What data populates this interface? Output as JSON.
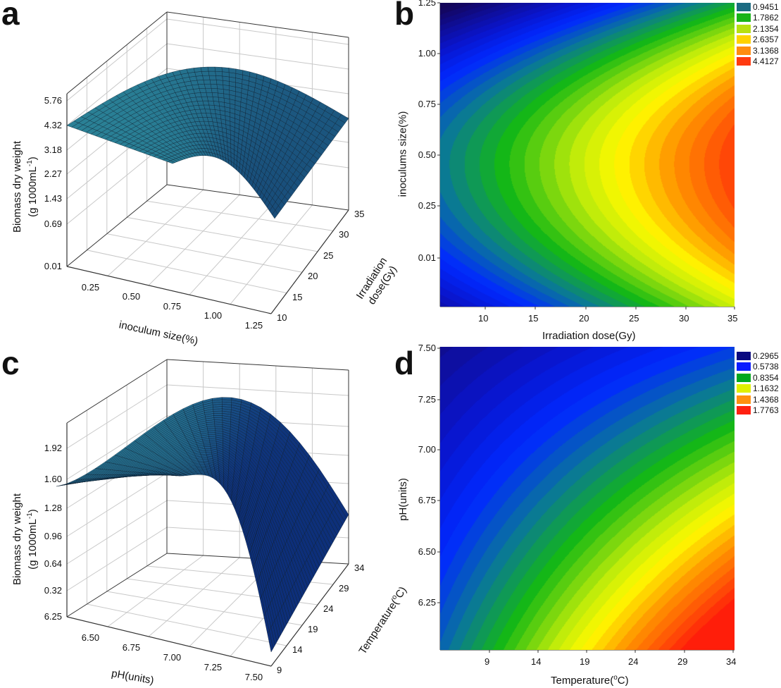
{
  "panels": {
    "a": "a",
    "b": "b",
    "c": "c",
    "d": "d"
  },
  "chart_data": [
    {
      "id": "a",
      "type": "surface",
      "zlabel_line1": "Biomass dry weight",
      "zlabel_line2": "(g 1000mL",
      "zlabel_sup": "-1",
      "zlabel_close": ")",
      "xlabel": "inoculum size(%)",
      "ylabel": "Irradiation dose(Gy)",
      "z_ticks": [
        "0.01",
        "0.69",
        "1.43",
        "2.27",
        "3.18",
        "4.32",
        "5.76"
      ],
      "x_ticks": [
        "0.25",
        "0.50",
        "0.75",
        "1.00",
        "1.25"
      ],
      "y_ticks": [
        "10",
        "15",
        "20",
        "25",
        "30",
        "35"
      ],
      "surface_colors": [
        "#174a78",
        "#2e8c9c"
      ],
      "grid": true
    },
    {
      "id": "b",
      "type": "contour",
      "xlabel": "Irradiation dose(Gy)",
      "ylabel": "inoculums size(%)",
      "x_ticks": [
        "10",
        "15",
        "20",
        "25",
        "30",
        "35"
      ],
      "y_ticks": [
        "1.25",
        "1.00",
        "0.75",
        "0.50",
        "0.25",
        "0.01"
      ],
      "legend_position": "top-right",
      "legend": [
        {
          "label": "0.9451",
          "color": "#1b6b82"
        },
        {
          "label": "1.7862",
          "color": "#18b418"
        },
        {
          "label": "2.1354",
          "color": "#b8e010"
        },
        {
          "label": "2.6357",
          "color": "#ffd200"
        },
        {
          "label": "3.1368",
          "color": "#ff8c10"
        },
        {
          "label": "4.4127",
          "color": "#ff3a10"
        }
      ]
    },
    {
      "id": "c",
      "type": "surface",
      "zlabel_line1": "Biomass dry weight",
      "zlabel_line2": "(g 1000mL",
      "zlabel_sup": "-1",
      "zlabel_close": ")",
      "xlabel": "pH(units)",
      "ylabel": "Temperature(",
      "ylabel_sup": "o",
      "ylabel_close": "C)",
      "z_ticks": [
        "6.25",
        "0.32",
        "0.64",
        "0.96",
        "1.28",
        "1.60",
        "1.92"
      ],
      "x_ticks": [
        "6.50",
        "6.75",
        "7.00",
        "7.25",
        "7.50"
      ],
      "y_ticks": [
        "9",
        "14",
        "19",
        "24",
        "29",
        "34"
      ],
      "surface_colors": [
        "#0d2f7a",
        "#2a7f96"
      ],
      "grid": true
    },
    {
      "id": "d",
      "type": "contour",
      "xlabel": "Temperature(",
      "xlabel_sup": "o",
      "xlabel_close": "C)",
      "ylabel": "pH(units)",
      "x_ticks": [
        "9",
        "14",
        "19",
        "24",
        "29",
        "34"
      ],
      "y_ticks": [
        "7.50",
        "7.25",
        "7.00",
        "6.75",
        "6.50",
        "6.25"
      ],
      "legend_position": "top-right",
      "legend": [
        {
          "label": "0.2965",
          "color": "#0a0a80"
        },
        {
          "label": "0.5738",
          "color": "#0a1cff"
        },
        {
          "label": "0.8354",
          "color": "#00a820"
        },
        {
          "label": "1.1632",
          "color": "#e0f000"
        },
        {
          "label": "1.4368",
          "color": "#ff9010"
        },
        {
          "label": "1.7763",
          "color": "#ff2010"
        }
      ]
    }
  ]
}
